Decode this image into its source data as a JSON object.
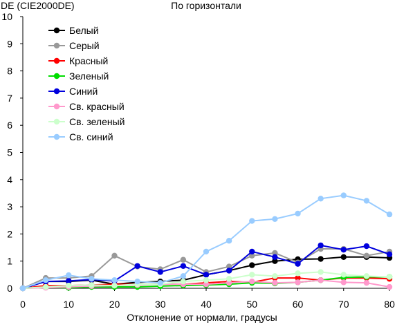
{
  "chart_data": {
    "type": "line",
    "title": "По горизонтали",
    "ylabel": "DE (CIE2000DE)",
    "xlabel": "Отклонение от нормали, градусы",
    "x": [
      0,
      5,
      10,
      15,
      20,
      25,
      30,
      35,
      40,
      45,
      50,
      55,
      60,
      65,
      70,
      75,
      80
    ],
    "xlim": [
      0,
      80
    ],
    "ylim": [
      0,
      10
    ],
    "xticks": [
      "0",
      "10",
      "20",
      "30",
      "40",
      "50",
      "60",
      "70",
      "80"
    ],
    "yticks": [
      "0",
      "1",
      "2",
      "3",
      "4",
      "5",
      "6",
      "7",
      "8",
      "9",
      "10"
    ],
    "grid": false,
    "legend_position": "top-left",
    "series": [
      {
        "name": "Белый",
        "color": "#000000",
        "values": [
          0,
          0.25,
          0.25,
          0.3,
          0.15,
          0.22,
          0.25,
          0.3,
          0.5,
          0.65,
          0.85,
          1.0,
          1.07,
          1.08,
          1.15,
          1.15,
          1.12
        ]
      },
      {
        "name": "Серый",
        "color": "#999999",
        "values": [
          0,
          0.38,
          0.38,
          0.45,
          1.2,
          0.8,
          0.7,
          1.05,
          0.6,
          0.8,
          1.2,
          1.3,
          0.95,
          1.45,
          1.45,
          1.2,
          1.35
        ]
      },
      {
        "name": "Красный",
        "color": "#ff0000",
        "values": [
          0,
          0.1,
          0.1,
          0.12,
          0.15,
          0.15,
          0.15,
          0.15,
          0.2,
          0.25,
          0.22,
          0.38,
          0.38,
          0.3,
          0.38,
          0.38,
          0.35
        ]
      },
      {
        "name": "Зеленый",
        "color": "#00dd00",
        "values": [
          0,
          0.03,
          0.02,
          0.05,
          0.05,
          0.05,
          0.08,
          0.1,
          0.12,
          0.15,
          0.2,
          0.18,
          0.22,
          0.3,
          0.4,
          0.42,
          0.42
        ]
      },
      {
        "name": "Синий",
        "color": "#0000dd",
        "values": [
          0,
          0.25,
          0.27,
          0.32,
          0.27,
          0.82,
          0.6,
          0.82,
          0.5,
          0.65,
          1.35,
          1.15,
          0.9,
          1.58,
          1.42,
          1.55,
          1.25
        ]
      },
      {
        "name": "Св. красный",
        "color": "#ff99cc",
        "values": [
          0,
          0.02,
          0.05,
          0.08,
          0.1,
          0.12,
          0.15,
          0.15,
          0.15,
          0.2,
          0.25,
          0.2,
          0.22,
          0.3,
          0.22,
          0.2,
          0.05
        ]
      },
      {
        "name": "Св. зеленый",
        "color": "#ccffcc",
        "values": [
          0,
          0.05,
          0.1,
          0.12,
          0.1,
          0.15,
          0.15,
          0.25,
          0.3,
          0.35,
          0.5,
          0.45,
          0.55,
          0.6,
          0.5,
          0.45,
          0.42
        ]
      },
      {
        "name": "Св. синий",
        "color": "#99ccff",
        "values": [
          0,
          0.3,
          0.48,
          0.35,
          0.3,
          0.25,
          0.2,
          0.45,
          1.35,
          1.75,
          2.48,
          2.55,
          2.75,
          3.3,
          3.42,
          3.22,
          2.72
        ]
      }
    ]
  }
}
